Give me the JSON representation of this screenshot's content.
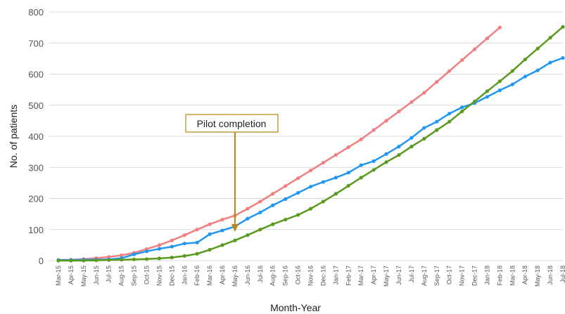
{
  "chart_data": {
    "type": "line",
    "xlabel": "Month-Year",
    "ylabel": "No. of patients",
    "ylim": [
      0,
      800
    ],
    "yticks": [
      "0",
      "100",
      "200",
      "300",
      "400",
      "500",
      "600",
      "700",
      "800"
    ],
    "grid": true,
    "x": [
      "Mar-15",
      "Apr-15",
      "May-15",
      "Jun-15",
      "Jul-15",
      "Aug-15",
      "Sep-15",
      "Oct-15",
      "Nov-15",
      "Dec-15",
      "Jan-16",
      "Feb-16",
      "Mar-16",
      "Apr-16",
      "May-16",
      "Jun-16",
      "Jul-16",
      "Aug-16",
      "Sep-16",
      "Oct-16",
      "Nov-16",
      "Dec-16",
      "Jan-17",
      "Feb-17",
      "Mar-17",
      "Apr-17",
      "May-17",
      "Jun-17",
      "Jul-17",
      "Aug-17",
      "Sep-17",
      "Oct-17",
      "Nov-17",
      "Dec-17",
      "Jan-18",
      "Feb-18",
      "Mar-18",
      "Apr-18",
      "May-18",
      "Jun-18",
      "Jul-18"
    ],
    "series": [
      {
        "color": "#f07f7f",
        "values": [
          2,
          3,
          5,
          8,
          12,
          17,
          25,
          37,
          50,
          65,
          82,
          100,
          117,
          132,
          145,
          167,
          190,
          215,
          240,
          265,
          290,
          315,
          340,
          365,
          390,
          420,
          450,
          480,
          510,
          540,
          575,
          610,
          645,
          680,
          715,
          750,
          null,
          null,
          null,
          null,
          null
        ]
      },
      {
        "color": "#2196f3",
        "values": [
          2,
          2,
          3,
          3,
          4,
          8,
          20,
          30,
          38,
          45,
          55,
          58,
          85,
          97,
          110,
          135,
          155,
          178,
          198,
          218,
          238,
          253,
          267,
          283,
          307,
          320,
          343,
          367,
          395,
          427,
          447,
          473,
          493,
          507,
          527,
          548,
          567,
          592,
          612,
          637,
          652
        ]
      },
      {
        "color": "#5a9a1e",
        "values": [
          0,
          0,
          0,
          1,
          2,
          3,
          4,
          5,
          7,
          10,
          15,
          22,
          35,
          50,
          65,
          82,
          100,
          117,
          132,
          147,
          167,
          190,
          215,
          241,
          267,
          292,
          317,
          340,
          367,
          392,
          420,
          447,
          480,
          512,
          545,
          577,
          610,
          647,
          682,
          717,
          752
        ]
      }
    ],
    "annotation": {
      "text": "Pilot completion",
      "x": "May-16"
    }
  }
}
